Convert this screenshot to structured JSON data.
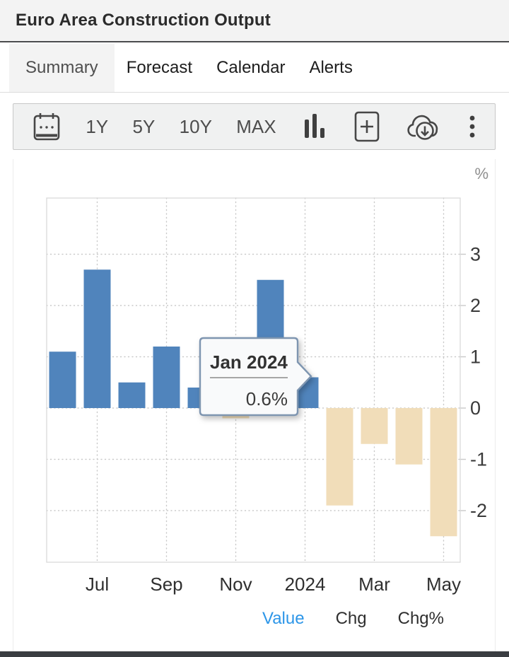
{
  "header": {
    "title": "Euro Area Construction Output"
  },
  "tabs": [
    {
      "label": "Summary",
      "active": true
    },
    {
      "label": "Forecast",
      "active": false
    },
    {
      "label": "Calendar",
      "active": false
    },
    {
      "label": "Alerts",
      "active": false
    }
  ],
  "toolbar": {
    "icons": [
      "calendar-icon",
      "bar-chart-icon",
      "add-chart-icon",
      "download-icon",
      "more-menu-icon"
    ],
    "ranges": [
      "1Y",
      "5Y",
      "10Y",
      "MAX"
    ]
  },
  "chart_data": {
    "type": "bar",
    "title": "Euro Area Construction Output",
    "unit_label": "%",
    "categories": [
      "Jun 2023",
      "Jul 2023",
      "Aug 2023",
      "Sep 2023",
      "Oct 2023",
      "Nov 2023",
      "Dec 2023",
      "Jan 2024",
      "Feb 2024",
      "Mar 2024",
      "Apr 2024",
      "May 2024"
    ],
    "values": [
      1.1,
      2.7,
      0.5,
      1.2,
      0.4,
      -0.2,
      2.5,
      0.6,
      -1.9,
      -0.7,
      -1.1,
      -2.5
    ],
    "x_tick_labels": [
      "Jul",
      "Sep",
      "Nov",
      "2024",
      "Mar",
      "May"
    ],
    "x_tick_month_indexes": [
      1,
      3,
      5,
      7,
      9,
      11
    ],
    "y_ticks": [
      3,
      2,
      1,
      0,
      -1,
      -2
    ],
    "ylim": [
      -3.0,
      4.1
    ],
    "grid": "dotted",
    "legend_position": "bottom-right",
    "positive_color": "#5084bc",
    "negative_color": "#f1ddb9",
    "tooltip": {
      "month_index": 7,
      "title": "Jan 2024",
      "value": "0.6%"
    },
    "legend": [
      {
        "label": "Value",
        "active": true,
        "color": "#2d96e8"
      },
      {
        "label": "Chg",
        "active": false,
        "color": "#2f2f2f"
      },
      {
        "label": "Chg%",
        "active": false,
        "color": "#2f2f2f"
      }
    ]
  }
}
